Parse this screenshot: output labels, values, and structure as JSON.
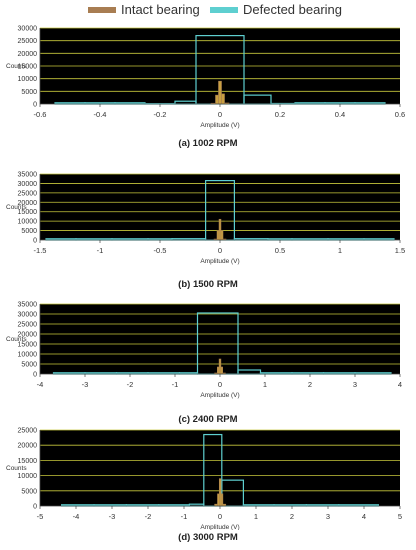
{
  "legend": {
    "intact_label": "Intact bearing",
    "defected_label": "Defected bearing",
    "intact_color": "#a87d52",
    "defected_color": "#5ecfd0"
  },
  "plot_colors": {
    "background": "#000000",
    "grid": "#c8c83c",
    "intact_fill": "#c8a040"
  },
  "chart_data": [
    {
      "type": "bar",
      "caption": "(a) 1002 RPM",
      "xlabel": "Amplitude (V)",
      "ylabel": "Counts",
      "xlim": [
        -0.6,
        0.6
      ],
      "ylim": [
        0,
        30000
      ],
      "xticks": [
        -0.6,
        -0.4,
        -0.2,
        0,
        0.2,
        0.4,
        0.6
      ],
      "xtick_labels": [
        "-0.6",
        "-0.4",
        "-0.2",
        "0",
        "0.2",
        "0.4",
        "0.6"
      ],
      "yticks": [
        0,
        5000,
        10000,
        15000,
        20000,
        25000,
        30000
      ],
      "ytick_labels": [
        "0",
        "5000",
        "10000",
        "15000",
        "20000",
        "25000",
        "30000"
      ],
      "series": [
        {
          "name": "Defected bearing",
          "bins": [
            [
              -0.55,
              -0.45,
              0
            ],
            [
              -0.45,
              -0.35,
              0
            ],
            [
              -0.35,
              -0.25,
              0
            ],
            [
              -0.25,
              -0.15,
              150
            ],
            [
              -0.15,
              -0.08,
              1100
            ],
            [
              -0.08,
              0.08,
              27000
            ],
            [
              0.08,
              0.17,
              3500
            ],
            [
              0.17,
              0.25,
              200
            ],
            [
              0.25,
              0.35,
              0
            ],
            [
              0.35,
              0.45,
              0
            ],
            [
              0.45,
              0.55,
              0
            ]
          ]
        },
        {
          "name": "Intact bearing",
          "bins": [
            [
              -0.03,
              -0.015,
              300
            ],
            [
              -0.015,
              -0.005,
              3500
            ],
            [
              -0.005,
              0.005,
              9000
            ],
            [
              0.005,
              0.015,
              4000
            ],
            [
              0.015,
              0.03,
              400
            ]
          ]
        }
      ]
    },
    {
      "type": "bar",
      "caption": "(b) 1500 RPM",
      "xlabel": "Amplitude (V)",
      "ylabel": "Counts",
      "xlim": [
        -1.5,
        1.5
      ],
      "ylim": [
        0,
        35000
      ],
      "xticks": [
        -1.5,
        -1,
        -0.5,
        0,
        0.5,
        1,
        1.5
      ],
      "xtick_labels": [
        "-1.5",
        "-1",
        "-0.5",
        "0",
        "0.5",
        "1",
        "1.5"
      ],
      "yticks": [
        0,
        5000,
        10000,
        15000,
        20000,
        25000,
        30000,
        35000
      ],
      "ytick_labels": [
        "0",
        "5000",
        "10000",
        "15000",
        "20000",
        "25000",
        "30000",
        "35000"
      ],
      "series": [
        {
          "name": "Defected bearing",
          "bins": [
            [
              -1.45,
              -1.2,
              0
            ],
            [
              -1.2,
              -0.9,
              0
            ],
            [
              -0.9,
              -0.6,
              0
            ],
            [
              -0.6,
              -0.4,
              0
            ],
            [
              -0.4,
              -0.12,
              700
            ],
            [
              -0.12,
              0.12,
              31500
            ],
            [
              0.12,
              0.4,
              700
            ],
            [
              0.4,
              0.6,
              0
            ],
            [
              0.6,
              0.9,
              0
            ],
            [
              0.9,
              1.2,
              0
            ],
            [
              1.2,
              1.45,
              0
            ]
          ]
        },
        {
          "name": "Intact bearing",
          "bins": [
            [
              -0.05,
              -0.025,
              500
            ],
            [
              -0.025,
              -0.008,
              5000
            ],
            [
              -0.008,
              0.008,
              11000
            ],
            [
              0.008,
              0.025,
              5000
            ],
            [
              0.025,
              0.05,
              500
            ]
          ]
        }
      ]
    },
    {
      "type": "bar",
      "caption": "(c) 2400 RPM",
      "xlabel": "Amplitude (V)",
      "ylabel": "Counts",
      "xlim": [
        -4,
        4
      ],
      "ylim": [
        0,
        35000
      ],
      "xticks": [
        -4,
        -3,
        -2,
        -1,
        0,
        1,
        2,
        3,
        4
      ],
      "xtick_labels": [
        "-4",
        "-3",
        "-2",
        "-1",
        "0",
        "1",
        "2",
        "3",
        "4"
      ],
      "yticks": [
        0,
        5000,
        10000,
        15000,
        20000,
        25000,
        30000,
        35000
      ],
      "ytick_labels": [
        "0",
        "5000",
        "10000",
        "15000",
        "20000",
        "25000",
        "30000",
        "35000"
      ],
      "series": [
        {
          "name": "Defected bearing",
          "bins": [
            [
              -3.7,
              -3.0,
              0
            ],
            [
              -3.0,
              -2.3,
              0
            ],
            [
              -2.3,
              -1.6,
              0
            ],
            [
              -1.6,
              -0.9,
              0
            ],
            [
              -0.9,
              -0.5,
              600
            ],
            [
              -0.5,
              0.4,
              30500
            ],
            [
              0.4,
              0.9,
              2000
            ],
            [
              0.9,
              1.6,
              0
            ],
            [
              1.6,
              2.3,
              0
            ],
            [
              2.3,
              3.0,
              0
            ],
            [
              3.0,
              3.8,
              0
            ]
          ]
        },
        {
          "name": "Intact bearing",
          "bins": [
            [
              -0.12,
              -0.06,
              500
            ],
            [
              -0.06,
              -0.02,
              3500
            ],
            [
              -0.02,
              0.02,
              7500
            ],
            [
              0.02,
              0.06,
              3500
            ],
            [
              0.06,
              0.12,
              500
            ]
          ]
        }
      ]
    },
    {
      "type": "bar",
      "caption": "(d) 3000 RPM",
      "xlabel": "Amplitude (V)",
      "ylabel": "Counts",
      "xlim": [
        -5,
        5
      ],
      "ylim": [
        0,
        25000
      ],
      "xticks": [
        -5,
        -4,
        -3,
        -2,
        -1,
        0,
        1,
        2,
        3,
        4,
        5
      ],
      "xtick_labels": [
        "-5",
        "-4",
        "-3",
        "-2",
        "-1",
        "0",
        "1",
        "2",
        "3",
        "4",
        "5"
      ],
      "yticks": [
        0,
        5000,
        10000,
        15000,
        20000,
        25000
      ],
      "ytick_labels": [
        "0",
        "5000",
        "10000",
        "15000",
        "20000",
        "25000"
      ],
      "series": [
        {
          "name": "Defected bearing",
          "bins": [
            [
              -4.4,
              -3.5,
              0
            ],
            [
              -3.5,
              -2.6,
              0
            ],
            [
              -2.6,
              -1.7,
              0
            ],
            [
              -1.7,
              -0.85,
              0
            ],
            [
              -0.85,
              -0.45,
              600
            ],
            [
              -0.45,
              0.05,
              23500
            ],
            [
              0.05,
              0.65,
              8500
            ],
            [
              0.65,
              1.5,
              0
            ],
            [
              1.5,
              2.4,
              0
            ],
            [
              2.4,
              3.3,
              0
            ],
            [
              3.3,
              4.4,
              0
            ]
          ]
        },
        {
          "name": "Intact bearing",
          "bins": [
            [
              -0.15,
              -0.07,
              600
            ],
            [
              -0.07,
              -0.02,
              4000
            ],
            [
              -0.02,
              0.03,
              9000
            ],
            [
              0.03,
              0.08,
              4000
            ],
            [
              0.08,
              0.16,
              600
            ]
          ]
        }
      ]
    }
  ]
}
